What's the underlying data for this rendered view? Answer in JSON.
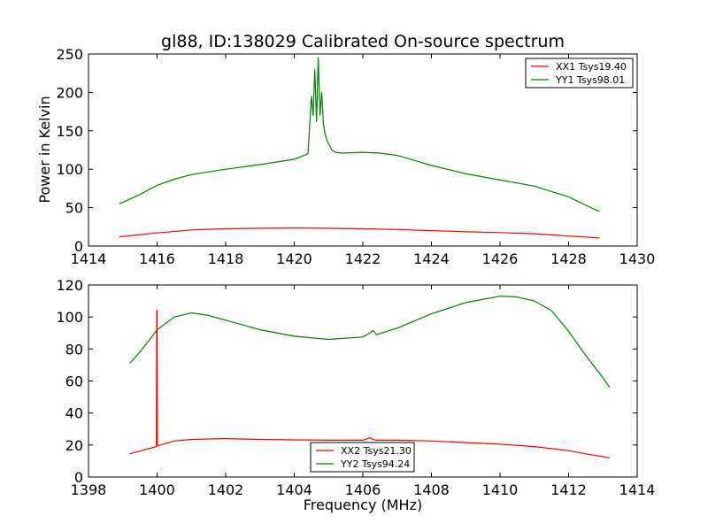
{
  "chart_data": {
    "type": "line",
    "title": "gl88, ID:138029 Calibrated On-source spectrum",
    "ylabel": "Power in Kelvin",
    "xlabel": "Frequency (MHz)",
    "panels": [
      {
        "xlim": [
          1414,
          1430
        ],
        "ylim": [
          0,
          250
        ],
        "xticks": [
          1414,
          1416,
          1418,
          1420,
          1422,
          1424,
          1426,
          1428,
          1430
        ],
        "yticks": [
          0,
          50,
          100,
          150,
          200,
          250
        ],
        "legend_position": "upper-right",
        "series": [
          {
            "name": "XX1 Tsys19.40",
            "color": "#ff0000",
            "x": [
              1414.9,
              1416.0,
              1417.0,
              1418.0,
              1419.0,
              1420.0,
              1421.0,
              1422.0,
              1423.0,
              1424.0,
              1425.0,
              1426.0,
              1427.0,
              1428.0,
              1428.9
            ],
            "y": [
              12,
              17,
              21,
              22.5,
              23,
              23.5,
              23,
              22.5,
              21.5,
              20,
              18.5,
              17.5,
              16,
              13,
              10.5
            ]
          },
          {
            "name": "YY1 Tsys98.01",
            "color": "#008000",
            "x": [
              1414.9,
              1415.5,
              1416.0,
              1416.5,
              1417.0,
              1418.0,
              1419.0,
              1420.0,
              1420.4,
              1420.5,
              1420.55,
              1420.6,
              1420.65,
              1420.7,
              1420.75,
              1420.8,
              1420.85,
              1420.9,
              1420.95,
              1421.0,
              1421.1,
              1421.2,
              1421.4,
              1422.0,
              1422.5,
              1423.0,
              1424.0,
              1425.0,
              1426.0,
              1426.5,
              1427.0,
              1427.5,
              1428.0,
              1428.5,
              1428.9
            ],
            "y": [
              55,
              67,
              79,
              87,
              93,
              100,
              106,
              113,
              120,
              195,
              170,
              230,
              162,
              245,
              170,
              200,
              160,
              145,
              138,
              133,
              125,
              122,
              121,
              122,
              121,
              118,
              105,
              94,
              86,
              82,
              78,
              71,
              64,
              53,
              45
            ]
          }
        ]
      },
      {
        "xlim": [
          1398,
          1414
        ],
        "ylim": [
          0,
          120
        ],
        "xticks": [
          1398,
          1400,
          1402,
          1404,
          1406,
          1408,
          1410,
          1412,
          1414
        ],
        "yticks": [
          0,
          20,
          40,
          60,
          80,
          100,
          120
        ],
        "legend_position": "lower-center",
        "series": [
          {
            "name": "XX2 Tsys21.30",
            "color": "#ff0000",
            "x": [
              1399.2,
              1399.9,
              1399.98,
              1399.99,
              1400.0,
              1400.01,
              1400.1,
              1400.5,
              1401.0,
              1402.0,
              1403.0,
              1404.0,
              1405.0,
              1406.0,
              1406.2,
              1406.3,
              1406.4,
              1407.0,
              1408.0,
              1409.0,
              1410.0,
              1411.0,
              1412.0,
              1412.5,
              1413.2
            ],
            "y": [
              14.5,
              18.5,
              19,
              104,
              104,
              19.5,
              20,
              22.5,
              23.5,
              24,
              23.5,
              23.2,
              23,
              23,
              24.5,
              23.5,
              23,
              23,
              22.5,
              21.5,
              20.5,
              19,
              16.5,
              14.5,
              12
            ]
          },
          {
            "name": "YY2 Tsys94.24",
            "color": "#008000",
            "x": [
              1399.2,
              1399.5,
              1400.0,
              1400.5,
              1401.0,
              1401.5,
              1402.0,
              1403.0,
              1404.0,
              1405.0,
              1406.0,
              1406.2,
              1406.3,
              1406.4,
              1407.0,
              1408.0,
              1409.0,
              1410.0,
              1410.5,
              1411.0,
              1411.5,
              1412.0,
              1412.5,
              1413.0,
              1413.2
            ],
            "y": [
              71,
              78,
              92,
              100,
              102.5,
              101,
              98,
              92,
              88,
              86,
              87.5,
              90,
              91.5,
              89,
              93,
              102,
              109,
              113,
              112.5,
              110,
              104,
              91,
              76,
              62,
              56
            ]
          }
        ]
      }
    ]
  }
}
